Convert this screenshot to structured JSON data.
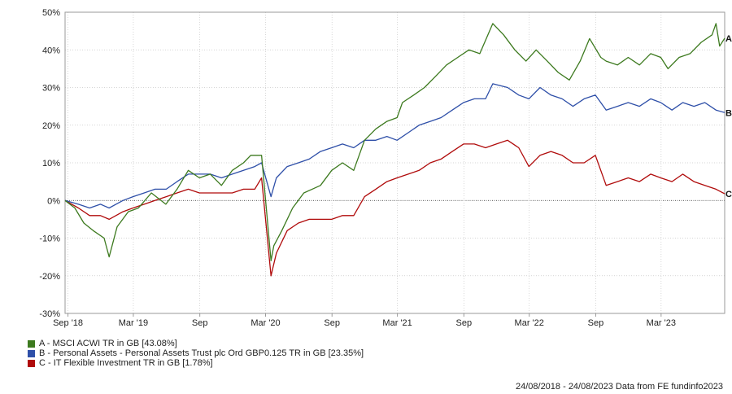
{
  "chart_data": {
    "type": "line",
    "y_ticks": [
      "50%",
      "40%",
      "30%",
      "20%",
      "10%",
      "0%",
      "-10%",
      "-20%",
      "-30%"
    ],
    "y_tick_values": [
      50,
      40,
      30,
      20,
      10,
      0,
      -10,
      -20,
      -30
    ],
    "ylim": [
      -30,
      50
    ],
    "x_ticks": [
      {
        "label": "Sep '18",
        "date": "2018-09-01"
      },
      {
        "label": "Mar '19",
        "date": "2019-03-01"
      },
      {
        "label": "Sep",
        "date": "2019-09-01"
      },
      {
        "label": "Mar '20",
        "date": "2020-03-01"
      },
      {
        "label": "Sep",
        "date": "2020-09-01"
      },
      {
        "label": "Mar '21",
        "date": "2021-03-01"
      },
      {
        "label": "Sep",
        "date": "2021-09-01"
      },
      {
        "label": "Mar '22",
        "date": "2022-03-01"
      },
      {
        "label": "Sep",
        "date": "2022-09-01"
      },
      {
        "label": "Mar '23",
        "date": "2023-03-01"
      }
    ],
    "xlim": [
      "2018-08-24",
      "2023-08-24"
    ],
    "grid": true,
    "series": [
      {
        "end_label": "A",
        "color": "#3d7a1f",
        "points": [
          [
            "2018-08-24",
            0
          ],
          [
            "2018-09-20",
            -2
          ],
          [
            "2018-10-15",
            -6
          ],
          [
            "2018-11-10",
            -8
          ],
          [
            "2018-12-10",
            -10
          ],
          [
            "2018-12-24",
            -15
          ],
          [
            "2019-01-15",
            -7
          ],
          [
            "2019-02-15",
            -3
          ],
          [
            "2019-03-15",
            -2
          ],
          [
            "2019-04-20",
            2
          ],
          [
            "2019-05-30",
            -1
          ],
          [
            "2019-06-30",
            3
          ],
          [
            "2019-07-31",
            8
          ],
          [
            "2019-08-31",
            6
          ],
          [
            "2019-09-30",
            7
          ],
          [
            "2019-10-31",
            4
          ],
          [
            "2019-11-30",
            8
          ],
          [
            "2019-12-31",
            10
          ],
          [
            "2020-01-20",
            12
          ],
          [
            "2020-02-19",
            12
          ],
          [
            "2020-03-16",
            -16
          ],
          [
            "2020-03-24",
            -12
          ],
          [
            "2020-04-15",
            -8
          ],
          [
            "2020-05-15",
            -2
          ],
          [
            "2020-06-15",
            2
          ],
          [
            "2020-07-31",
            4
          ],
          [
            "2020-08-31",
            8
          ],
          [
            "2020-09-30",
            10
          ],
          [
            "2020-10-31",
            8
          ],
          [
            "2020-11-30",
            16
          ],
          [
            "2020-12-31",
            19
          ],
          [
            "2021-01-31",
            21
          ],
          [
            "2021-02-28",
            22
          ],
          [
            "2021-03-15",
            26
          ],
          [
            "2021-04-15",
            28
          ],
          [
            "2021-05-15",
            30
          ],
          [
            "2021-06-15",
            33
          ],
          [
            "2021-07-15",
            36
          ],
          [
            "2021-08-15",
            38
          ],
          [
            "2021-09-15",
            40
          ],
          [
            "2021-10-15",
            39
          ],
          [
            "2021-11-20",
            47
          ],
          [
            "2021-12-20",
            44
          ],
          [
            "2022-01-20",
            40
          ],
          [
            "2022-02-20",
            37
          ],
          [
            "2022-03-20",
            40
          ],
          [
            "2022-04-20",
            37
          ],
          [
            "2022-05-20",
            34
          ],
          [
            "2022-06-20",
            32
          ],
          [
            "2022-07-20",
            37
          ],
          [
            "2022-08-15",
            43
          ],
          [
            "2022-09-15",
            38
          ],
          [
            "2022-09-30",
            37
          ],
          [
            "2022-10-31",
            36
          ],
          [
            "2022-11-30",
            38
          ],
          [
            "2022-12-31",
            36
          ],
          [
            "2023-01-31",
            39
          ],
          [
            "2023-02-28",
            38
          ],
          [
            "2023-03-20",
            35
          ],
          [
            "2023-04-20",
            38
          ],
          [
            "2023-05-20",
            39
          ],
          [
            "2023-06-20",
            42
          ],
          [
            "2023-07-20",
            44
          ],
          [
            "2023-07-31",
            47
          ],
          [
            "2023-08-10",
            41
          ],
          [
            "2023-08-24",
            43.08
          ]
        ]
      },
      {
        "end_label": "B",
        "color": "#2e4fa8",
        "points": [
          [
            "2018-08-24",
            0
          ],
          [
            "2018-09-30",
            -1
          ],
          [
            "2018-10-31",
            -2
          ],
          [
            "2018-11-30",
            -1
          ],
          [
            "2018-12-24",
            -2
          ],
          [
            "2019-01-31",
            0
          ],
          [
            "2019-02-28",
            1
          ],
          [
            "2019-03-31",
            2
          ],
          [
            "2019-04-30",
            3
          ],
          [
            "2019-05-31",
            3
          ],
          [
            "2019-06-30",
            5
          ],
          [
            "2019-07-31",
            7
          ],
          [
            "2019-08-31",
            7
          ],
          [
            "2019-09-30",
            7
          ],
          [
            "2019-10-31",
            6
          ],
          [
            "2019-11-30",
            7
          ],
          [
            "2019-12-31",
            8
          ],
          [
            "2020-01-31",
            9
          ],
          [
            "2020-02-19",
            10
          ],
          [
            "2020-03-16",
            1
          ],
          [
            "2020-03-31",
            6
          ],
          [
            "2020-04-30",
            9
          ],
          [
            "2020-05-31",
            10
          ],
          [
            "2020-06-30",
            11
          ],
          [
            "2020-07-31",
            13
          ],
          [
            "2020-08-31",
            14
          ],
          [
            "2020-09-30",
            15
          ],
          [
            "2020-10-31",
            14
          ],
          [
            "2020-11-30",
            16
          ],
          [
            "2020-12-31",
            16
          ],
          [
            "2021-01-31",
            17
          ],
          [
            "2021-02-28",
            16
          ],
          [
            "2021-03-31",
            18
          ],
          [
            "2021-04-30",
            20
          ],
          [
            "2021-05-31",
            21
          ],
          [
            "2021-06-30",
            22
          ],
          [
            "2021-07-31",
            24
          ],
          [
            "2021-08-31",
            26
          ],
          [
            "2021-09-30",
            27
          ],
          [
            "2021-10-31",
            27
          ],
          [
            "2021-11-20",
            31
          ],
          [
            "2021-12-31",
            30
          ],
          [
            "2022-01-31",
            28
          ],
          [
            "2022-02-28",
            27
          ],
          [
            "2022-03-31",
            30
          ],
          [
            "2022-04-30",
            28
          ],
          [
            "2022-05-31",
            27
          ],
          [
            "2022-06-30",
            25
          ],
          [
            "2022-07-31",
            27
          ],
          [
            "2022-08-31",
            28
          ],
          [
            "2022-09-30",
            24
          ],
          [
            "2022-10-31",
            25
          ],
          [
            "2022-11-30",
            26
          ],
          [
            "2022-12-31",
            25
          ],
          [
            "2023-01-31",
            27
          ],
          [
            "2023-02-28",
            26
          ],
          [
            "2023-03-31",
            24
          ],
          [
            "2023-04-30",
            26
          ],
          [
            "2023-05-31",
            25
          ],
          [
            "2023-06-30",
            26
          ],
          [
            "2023-07-31",
            24
          ],
          [
            "2023-08-24",
            23.35
          ]
        ]
      },
      {
        "end_label": "C",
        "color": "#b00b0b",
        "points": [
          [
            "2018-08-24",
            0
          ],
          [
            "2018-09-30",
            -2
          ],
          [
            "2018-10-31",
            -4
          ],
          [
            "2018-11-30",
            -4
          ],
          [
            "2018-12-24",
            -5
          ],
          [
            "2019-01-31",
            -3
          ],
          [
            "2019-02-28",
            -2
          ],
          [
            "2019-03-31",
            -1
          ],
          [
            "2019-04-30",
            0
          ],
          [
            "2019-05-31",
            1
          ],
          [
            "2019-06-30",
            2
          ],
          [
            "2019-07-31",
            3
          ],
          [
            "2019-08-31",
            2
          ],
          [
            "2019-09-30",
            2
          ],
          [
            "2019-10-31",
            2
          ],
          [
            "2019-11-30",
            2
          ],
          [
            "2019-12-31",
            3
          ],
          [
            "2020-01-31",
            3
          ],
          [
            "2020-02-19",
            6
          ],
          [
            "2020-03-16",
            -20
          ],
          [
            "2020-03-31",
            -14
          ],
          [
            "2020-04-30",
            -8
          ],
          [
            "2020-05-31",
            -6
          ],
          [
            "2020-06-30",
            -5
          ],
          [
            "2020-07-31",
            -5
          ],
          [
            "2020-08-31",
            -5
          ],
          [
            "2020-09-30",
            -4
          ],
          [
            "2020-10-31",
            -4
          ],
          [
            "2020-11-30",
            1
          ],
          [
            "2020-12-31",
            3
          ],
          [
            "2021-01-31",
            5
          ],
          [
            "2021-02-28",
            6
          ],
          [
            "2021-03-31",
            7
          ],
          [
            "2021-04-30",
            8
          ],
          [
            "2021-05-31",
            10
          ],
          [
            "2021-06-30",
            11
          ],
          [
            "2021-07-31",
            13
          ],
          [
            "2021-08-31",
            15
          ],
          [
            "2021-09-30",
            15
          ],
          [
            "2021-10-31",
            14
          ],
          [
            "2021-11-30",
            15
          ],
          [
            "2021-12-31",
            16
          ],
          [
            "2022-01-31",
            14
          ],
          [
            "2022-02-28",
            9
          ],
          [
            "2022-03-31",
            12
          ],
          [
            "2022-04-30",
            13
          ],
          [
            "2022-05-31",
            12
          ],
          [
            "2022-06-30",
            10
          ],
          [
            "2022-07-31",
            10
          ],
          [
            "2022-08-31",
            12
          ],
          [
            "2022-09-30",
            4
          ],
          [
            "2022-10-31",
            5
          ],
          [
            "2022-11-30",
            6
          ],
          [
            "2022-12-31",
            5
          ],
          [
            "2023-01-31",
            7
          ],
          [
            "2023-02-28",
            6
          ],
          [
            "2023-03-31",
            5
          ],
          [
            "2023-04-30",
            7
          ],
          [
            "2023-05-31",
            5
          ],
          [
            "2023-06-30",
            4
          ],
          [
            "2023-07-31",
            3
          ],
          [
            "2023-08-24",
            1.78
          ]
        ]
      }
    ]
  },
  "legend": [
    {
      "text": "A - MSCI ACWI TR in GB [43.08%]",
      "color": "#3d7a1f"
    },
    {
      "text": "B - Personal Assets - Personal Assets Trust plc Ord GBP0.125 TR in GB [23.35%]",
      "color": "#2e4fa8"
    },
    {
      "text": "C - IT Flexible Investment TR in GB [1.78%]",
      "color": "#b00b0b"
    }
  ],
  "footer": "24/08/2018 - 24/08/2023 Data from FE fundinfo2023"
}
